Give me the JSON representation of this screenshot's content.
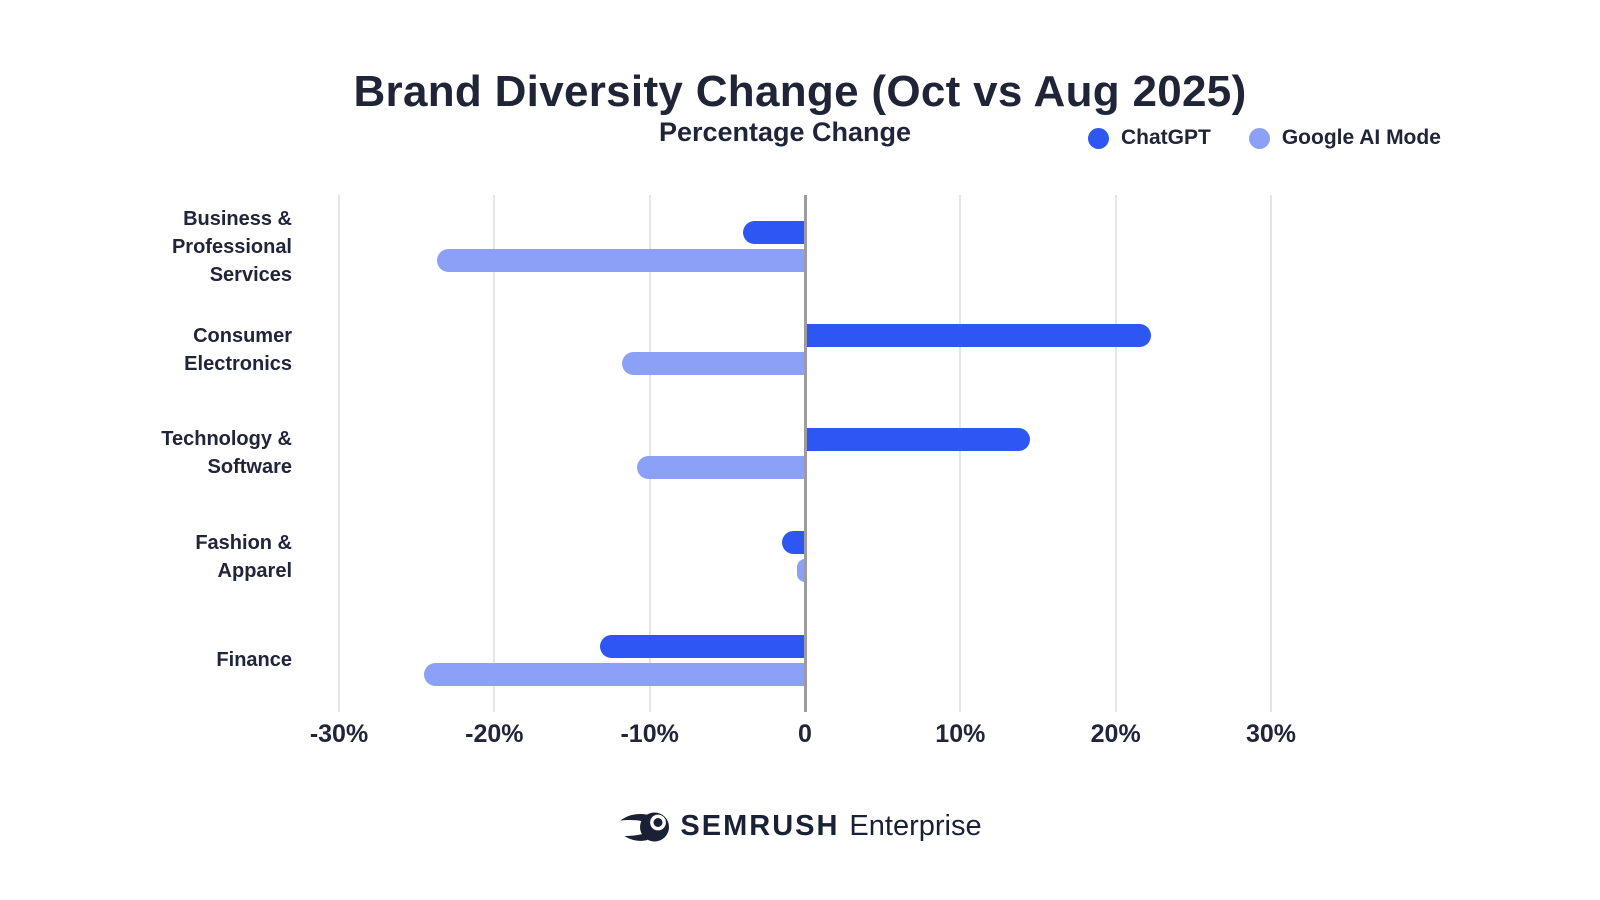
{
  "chart_data": {
    "type": "bar",
    "orientation": "horizontal",
    "title": "Brand Diversity Change (Oct vs Aug 2025)",
    "subtitle": "Percentage Change",
    "categories": [
      "Business & Professional Services",
      "Consumer Electronics",
      "Technology & Software",
      "Fashion & Apparel",
      "Finance"
    ],
    "category_lines": [
      [
        "Business &",
        "Professional",
        "Services"
      ],
      [
        "Consumer",
        "Electronics"
      ],
      [
        "Technology &",
        "Software"
      ],
      [
        "Fashion &",
        "Apparel"
      ],
      [
        "Finance"
      ]
    ],
    "series": [
      {
        "name": "ChatGPT",
        "color": "#2E56F2",
        "values": [
          -4,
          22.3,
          14.5,
          -1.5,
          -13.2
        ]
      },
      {
        "name": "Google AI Mode",
        "color": "#8CA0F7",
        "values": [
          -23.7,
          -11.8,
          -10.8,
          -0.5,
          -24.5
        ]
      }
    ],
    "unit": "%",
    "xlim": [
      -30,
      30
    ],
    "xticks": [
      {
        "value": -30,
        "label": "-30%"
      },
      {
        "value": -20,
        "label": "-20%"
      },
      {
        "value": -10,
        "label": "-10%"
      },
      {
        "value": 0,
        "label": "0"
      },
      {
        "value": 10,
        "label": "10%"
      },
      {
        "value": 20,
        "label": "20%"
      },
      {
        "value": 30,
        "label": "30%"
      }
    ],
    "grid": true,
    "legend_position": "top-right",
    "colors": {
      "text": "#1F2437",
      "gridline": "#E6E6EA",
      "zero_axis": "#9B9BA0",
      "background": "#FFFFFF"
    }
  },
  "footer": {
    "brand": "SEMRUSH",
    "suffix": "Enterprise"
  }
}
